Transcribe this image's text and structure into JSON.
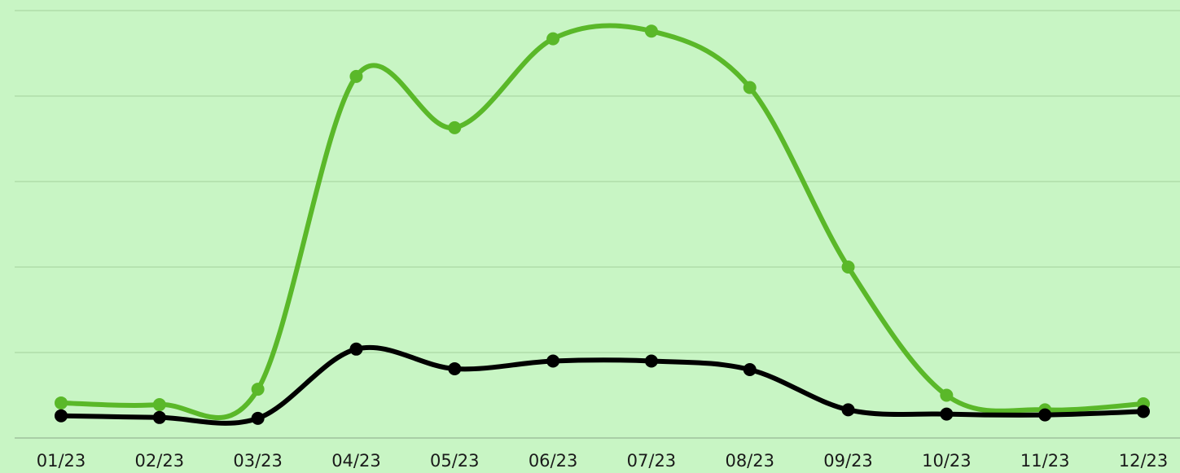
{
  "chart_data": {
    "type": "line",
    "categories": [
      "01/23",
      "02/23",
      "03/23",
      "04/23",
      "05/23",
      "06/23",
      "07/23",
      "08/23",
      "09/23",
      "10/23",
      "11/23",
      "12/23"
    ],
    "series": [
      {
        "color": "#5ab829",
        "values": [
          0.41,
          0.39,
          0.57,
          4.23,
          3.63,
          4.67,
          4.76,
          4.1,
          2.0,
          0.5,
          0.33,
          0.4
        ]
      },
      {
        "color": "#000000",
        "values": [
          0.26,
          0.24,
          0.23,
          1.04,
          0.81,
          0.9,
          0.9,
          0.8,
          0.33,
          0.28,
          0.27,
          0.31
        ]
      }
    ],
    "ylim": [
      0,
      5
    ],
    "yticks": [
      0,
      1,
      2,
      3,
      4,
      5
    ],
    "grid": true
  }
}
